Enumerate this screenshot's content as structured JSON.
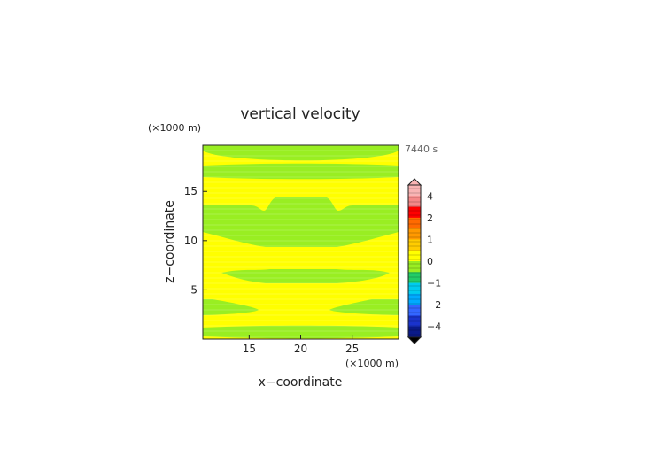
{
  "chart_data": {
    "type": "heatmap",
    "title": "vertical velocity",
    "xlabel": "x−coordinate",
    "ylabel": "z−coordinate",
    "x_unit": "(×1000 m)",
    "y_unit": "(×1000 m)",
    "time_label": "7440 s",
    "xlim": [
      10.5,
      29.5
    ],
    "ylim": [
      0,
      19.7
    ],
    "x_ticks": [
      "15",
      "20",
      "25"
    ],
    "x_tick_values": [
      15,
      20,
      25
    ],
    "y_ticks": [
      "5",
      "10",
      "15"
    ],
    "y_tick_values": [
      5,
      10,
      15
    ],
    "colorbar": {
      "tick_labels": [
        "4",
        "2",
        "1",
        "0",
        "−1",
        "−2",
        "−4"
      ],
      "tick_values": [
        4,
        2,
        1,
        0,
        -1,
        -2,
        -4
      ],
      "levels": [
        5,
        4,
        3,
        2,
        1.5,
        1,
        0.5,
        0,
        -0.5,
        -1,
        -1.5,
        -2,
        -3,
        -4,
        -5
      ],
      "colors": [
        "#f9b4b4",
        "#f58888",
        "#ff0000",
        "#ff6a00",
        "#ff9900",
        "#ffcc00",
        "#ffff00",
        "#99ee22",
        "#22cc66",
        "#00ccee",
        "#00aaff",
        "#3366ff",
        "#1a33cc",
        "#0a1a88"
      ],
      "extend": "both"
    },
    "bands": [
      {
        "value_range": [
          0,
          0.5
        ],
        "color": "#ffff00"
      },
      {
        "value_range": [
          -0.5,
          0
        ],
        "color": "#99ee22"
      }
    ],
    "green_regions_approx": [
      {
        "z_range": [
          0.2,
          1.0
        ],
        "x_range": [
          10.5,
          29.5
        ]
      },
      {
        "z_range": [
          2.3,
          3.7
        ],
        "x_range": "left and right edges"
      },
      {
        "z_range": [
          5.7,
          7.1
        ],
        "x_range": [
          12.5,
          28
        ]
      },
      {
        "z_range": [
          9.5,
          14.2
        ],
        "x_range": [
          10.5,
          29.5
        ]
      },
      {
        "z_range": [
          16.8,
          18.1
        ],
        "x_range": [
          10.5,
          29.5
        ]
      }
    ]
  }
}
